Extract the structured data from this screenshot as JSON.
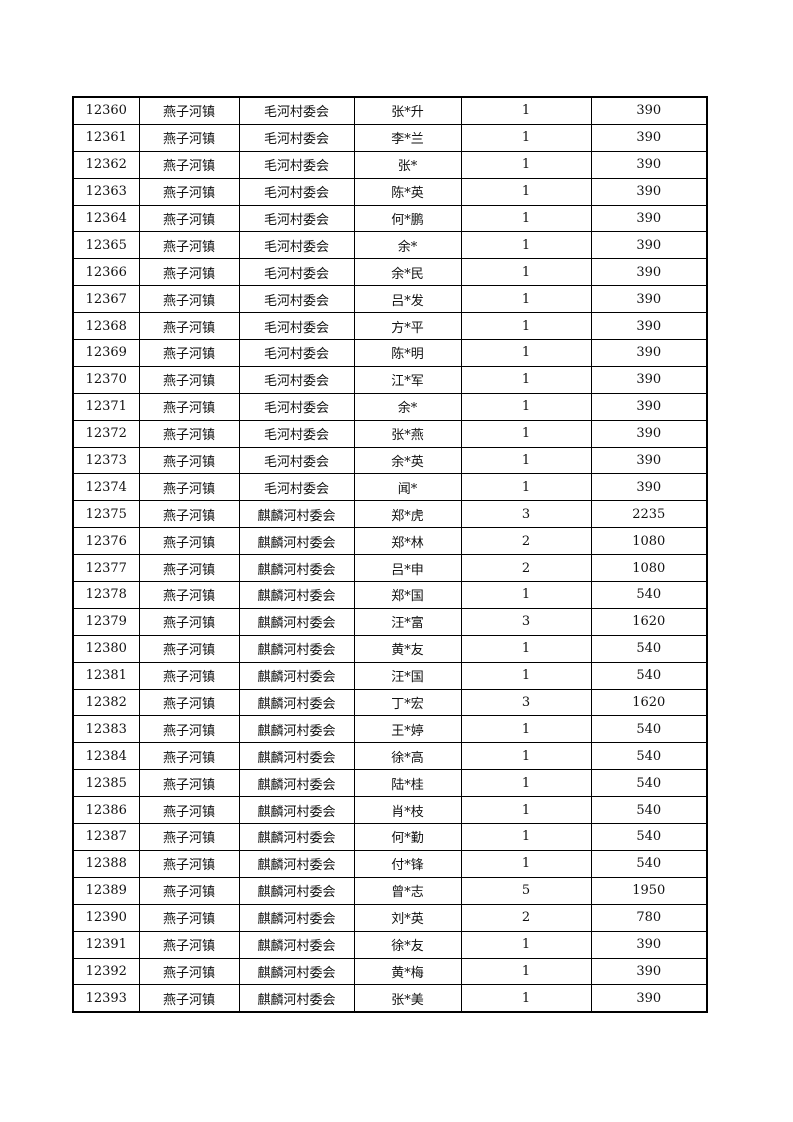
{
  "rows": [
    [
      "12360",
      "燕子河镇",
      "毛河村委会",
      "张*升",
      "1",
      "390"
    ],
    [
      "12361",
      "燕子河镇",
      "毛河村委会",
      "李*兰",
      "1",
      "390"
    ],
    [
      "12362",
      "燕子河镇",
      "毛河村委会",
      "张*",
      "1",
      "390"
    ],
    [
      "12363",
      "燕子河镇",
      "毛河村委会",
      "陈*英",
      "1",
      "390"
    ],
    [
      "12364",
      "燕子河镇",
      "毛河村委会",
      "何*鹏",
      "1",
      "390"
    ],
    [
      "12365",
      "燕子河镇",
      "毛河村委会",
      "余*",
      "1",
      "390"
    ],
    [
      "12366",
      "燕子河镇",
      "毛河村委会",
      "余*民",
      "1",
      "390"
    ],
    [
      "12367",
      "燕子河镇",
      "毛河村委会",
      "吕*发",
      "1",
      "390"
    ],
    [
      "12368",
      "燕子河镇",
      "毛河村委会",
      "方*平",
      "1",
      "390"
    ],
    [
      "12369",
      "燕子河镇",
      "毛河村委会",
      "陈*明",
      "1",
      "390"
    ],
    [
      "12370",
      "燕子河镇",
      "毛河村委会",
      "江*军",
      "1",
      "390"
    ],
    [
      "12371",
      "燕子河镇",
      "毛河村委会",
      "余*",
      "1",
      "390"
    ],
    [
      "12372",
      "燕子河镇",
      "毛河村委会",
      "张*燕",
      "1",
      "390"
    ],
    [
      "12373",
      "燕子河镇",
      "毛河村委会",
      "余*英",
      "1",
      "390"
    ],
    [
      "12374",
      "燕子河镇",
      "毛河村委会",
      "闻*",
      "1",
      "390"
    ],
    [
      "12375",
      "燕子河镇",
      "麒麟河村委会",
      "郑*虎",
      "3",
      "2235"
    ],
    [
      "12376",
      "燕子河镇",
      "麒麟河村委会",
      "郑*林",
      "2",
      "1080"
    ],
    [
      "12377",
      "燕子河镇",
      "麒麟河村委会",
      "吕*申",
      "2",
      "1080"
    ],
    [
      "12378",
      "燕子河镇",
      "麒麟河村委会",
      "郑*国",
      "1",
      "540"
    ],
    [
      "12379",
      "燕子河镇",
      "麒麟河村委会",
      "汪*富",
      "3",
      "1620"
    ],
    [
      "12380",
      "燕子河镇",
      "麒麟河村委会",
      "黄*友",
      "1",
      "540"
    ],
    [
      "12381",
      "燕子河镇",
      "麒麟河村委会",
      "汪*国",
      "1",
      "540"
    ],
    [
      "12382",
      "燕子河镇",
      "麒麟河村委会",
      "丁*宏",
      "3",
      "1620"
    ],
    [
      "12383",
      "燕子河镇",
      "麒麟河村委会",
      "王*婷",
      "1",
      "540"
    ],
    [
      "12384",
      "燕子河镇",
      "麒麟河村委会",
      "徐*高",
      "1",
      "540"
    ],
    [
      "12385",
      "燕子河镇",
      "麒麟河村委会",
      "陆*桂",
      "1",
      "540"
    ],
    [
      "12386",
      "燕子河镇",
      "麒麟河村委会",
      "肖*枝",
      "1",
      "540"
    ],
    [
      "12387",
      "燕子河镇",
      "麒麟河村委会",
      "何*勤",
      "1",
      "540"
    ],
    [
      "12388",
      "燕子河镇",
      "麒麟河村委会",
      "付*锋",
      "1",
      "540"
    ],
    [
      "12389",
      "燕子河镇",
      "麒麟河村委会",
      "曾*志",
      "5",
      "1950"
    ],
    [
      "12390",
      "燕子河镇",
      "麒麟河村委会",
      "刘*英",
      "2",
      "780"
    ],
    [
      "12391",
      "燕子河镇",
      "麒麟河村委会",
      "徐*友",
      "1",
      "390"
    ],
    [
      "12392",
      "燕子河镇",
      "麒麟河村委会",
      "黄*梅",
      "1",
      "390"
    ],
    [
      "12393",
      "燕子河镇",
      "麒麟河村委会",
      "张*美",
      "1",
      "390"
    ]
  ]
}
